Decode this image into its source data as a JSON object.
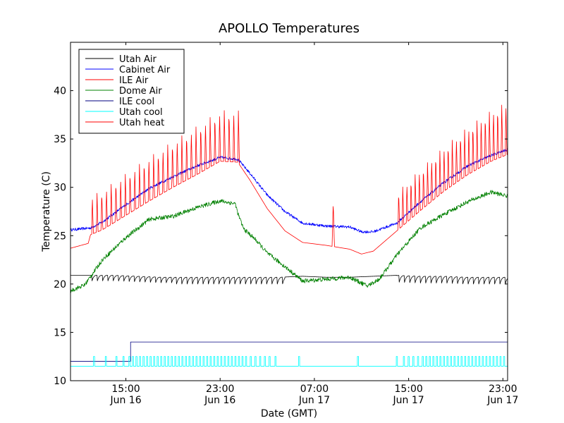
{
  "chart_data": {
    "type": "line",
    "title": "APOLLO Temperatures",
    "xlabel": "Date (GMT)",
    "ylabel": "Temperature (C)",
    "xlim": [
      10.3,
      47.4
    ],
    "ylim": [
      10,
      45
    ],
    "x_unit": "hours since Jun 16 00:00 GMT",
    "x_ticks": [
      {
        "x": 15,
        "line1": "15:00",
        "line2": "Jun 16"
      },
      {
        "x": 23,
        "line1": "23:00",
        "line2": "Jun 16"
      },
      {
        "x": 31,
        "line1": "07:00",
        "line2": "Jun 17"
      },
      {
        "x": 39,
        "line1": "15:00",
        "line2": "Jun 17"
      },
      {
        "x": 47,
        "line1": "23:00",
        "line2": "Jun 17"
      }
    ],
    "y_ticks": [
      10,
      15,
      20,
      25,
      30,
      35,
      40
    ],
    "legend_position": "top-left",
    "series": [
      {
        "name": "Utah Air",
        "color": "#000000",
        "x": [
          10.3,
          12.2,
          14.0,
          16.0,
          18.0,
          20.0,
          22.0,
          24.0,
          26.0,
          28.0,
          30.0,
          32.0,
          34.0,
          36.0,
          38.0,
          40.0,
          42.0,
          44.0,
          46.0,
          47.4
        ],
        "y": [
          20.9,
          20.9,
          20.9,
          20.8,
          20.7,
          20.7,
          20.7,
          20.7,
          20.7,
          20.7,
          20.8,
          20.7,
          20.7,
          20.8,
          20.9,
          20.8,
          20.8,
          20.7,
          20.7,
          20.7
        ],
        "sawtooth": {
          "start": 12.1,
          "end": 47.4,
          "period": 0.45,
          "drop": 0.7,
          "gap": [
            28.5,
            38.0
          ]
        }
      },
      {
        "name": "Cabinet Air",
        "color": "#0000ff",
        "x": [
          10.3,
          12.0,
          13.0,
          15.0,
          17.0,
          19.0,
          21.0,
          23.0,
          24.5,
          25.5,
          27.0,
          28.5,
          30.0,
          32.0,
          34.0,
          35.0,
          36.0,
          38.0,
          40.0,
          42.0,
          44.0,
          46.0,
          47.4
        ],
        "y": [
          25.6,
          25.8,
          26.4,
          28.2,
          29.9,
          31.1,
          32.2,
          33.1,
          32.9,
          31.5,
          29.2,
          27.5,
          26.3,
          26.0,
          25.9,
          25.4,
          25.4,
          26.3,
          28.5,
          30.5,
          32.2,
          33.3,
          33.9
        ],
        "noise": 0.14
      },
      {
        "name": "ILE Air",
        "color": "#ff0000",
        "x": [
          10.3,
          11.8,
          12.0,
          13.0,
          15.0,
          17.0,
          19.0,
          21.0,
          23.0,
          24.5,
          25.5,
          27.0,
          28.5,
          30.0,
          32.0,
          34.0,
          35.0,
          36.0,
          38.0,
          40.0,
          42.0,
          44.0,
          46.0,
          47.4
        ],
        "y": [
          23.7,
          24.2,
          25.1,
          25.6,
          27.1,
          28.6,
          30.0,
          31.3,
          32.7,
          32.6,
          30.8,
          27.8,
          25.5,
          24.3,
          24.0,
          23.6,
          23.1,
          23.4,
          25.5,
          27.6,
          29.6,
          31.3,
          32.7,
          33.4
        ],
        "spikes": {
          "start": 12.1,
          "end": 24.8,
          "period": 0.4,
          "width": 0.14,
          "height_start": 4.0,
          "height_end": 5.5
        },
        "spikes2": {
          "start": 38.1,
          "end": 47.4,
          "period": 0.35,
          "width": 0.14,
          "height_start": 4.0,
          "height_end": 5.5
        },
        "extra_spikes": [
          {
            "x": 32.6,
            "h": 4.6
          }
        ]
      },
      {
        "name": "Dome Air",
        "color": "#008000",
        "x": [
          10.3,
          11.5,
          13.0,
          15.0,
          17.0,
          19.0,
          21.0,
          23.0,
          24.3,
          24.5,
          25.0,
          26.0,
          27.0,
          28.5,
          30.0,
          32.0,
          34.0,
          35.5,
          36.5,
          38.0,
          40.0,
          42.0,
          44.0,
          46.0,
          47.4
        ],
        "y": [
          19.3,
          19.9,
          22.5,
          24.8,
          26.7,
          27.0,
          27.9,
          28.6,
          28.3,
          27.3,
          25.7,
          24.6,
          23.2,
          21.8,
          20.3,
          20.5,
          20.7,
          19.8,
          20.5,
          23.0,
          25.8,
          27.2,
          28.5,
          29.5,
          29.1
        ],
        "noise": 0.22
      },
      {
        "name": "ILE cool",
        "color": "#000080",
        "x": [
          10.3,
          15.4,
          15.4,
          47.4
        ],
        "y": [
          12.0,
          12.0,
          14.0,
          14.0
        ]
      },
      {
        "name": "Utah cool",
        "color": "#00ffff",
        "x": [
          10.3,
          47.4
        ],
        "y": [
          11.5,
          11.5
        ],
        "pulses": {
          "base": 11.5,
          "top": 12.5,
          "width": 0.1,
          "x": [
            12.3,
            13.3,
            14.2,
            14.8,
            15.3,
            15.6,
            15.9,
            16.2,
            16.5,
            16.8,
            17.1,
            17.4,
            17.7,
            18.0,
            18.3,
            18.6,
            18.9,
            19.2,
            19.5,
            19.8,
            20.1,
            20.4,
            20.7,
            21.0,
            21.3,
            21.6,
            21.9,
            22.2,
            22.5,
            22.8,
            23.1,
            23.4,
            23.7,
            24.0,
            24.3,
            24.6,
            24.9,
            25.2,
            25.6,
            26.0,
            26.4,
            26.8,
            27.2,
            27.7,
            29.7,
            34.7,
            38.0,
            38.6,
            39.0,
            39.4,
            39.8,
            40.2,
            40.5,
            40.8,
            41.1,
            41.4,
            41.7,
            42.0,
            42.3,
            42.6,
            42.9,
            43.2,
            43.5,
            43.8,
            44.1,
            44.4,
            44.7,
            45.0,
            45.3,
            45.6,
            45.9,
            46.2,
            46.5,
            46.8,
            47.1
          ]
        }
      },
      {
        "name": "Utah heat",
        "color": "#ff0000",
        "x": [
          10.3,
          47.4
        ],
        "y": [
          null,
          null
        ]
      }
    ]
  }
}
